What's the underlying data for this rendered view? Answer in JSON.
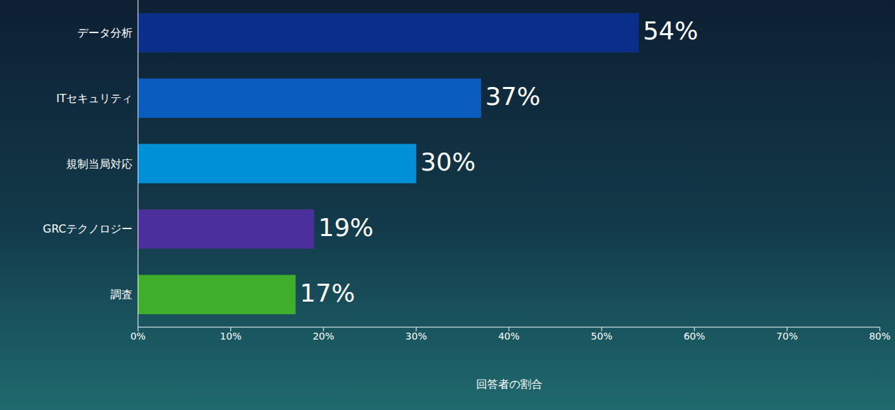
{
  "chart_data": {
    "type": "bar",
    "orientation": "horizontal",
    "categories": [
      "データ分析",
      "ITセキュリティ",
      "規制当局対応",
      "GRCテクノロジー",
      "調査"
    ],
    "values": [
      54,
      37,
      30,
      19,
      17
    ],
    "value_labels": [
      "54%",
      "37%",
      "30%",
      "19%",
      "17%"
    ],
    "colors": [
      "#0a2f8a",
      "#0a5cbf",
      "#0090d8",
      "#4b2f9a",
      "#3fae2a"
    ],
    "x_label": "回答者の割合",
    "xlim": [
      0,
      80
    ],
    "xticks": [
      {
        "value": 0,
        "label": "0%"
      },
      {
        "value": 10,
        "label": "10%"
      },
      {
        "value": 20,
        "label": "20%"
      },
      {
        "value": 30,
        "label": "30%"
      },
      {
        "value": 40,
        "label": "40%"
      },
      {
        "value": 50,
        "label": "50%"
      },
      {
        "value": 60,
        "label": "60%"
      },
      {
        "value": 70,
        "label": "70%"
      },
      {
        "value": 80,
        "label": "80%"
      }
    ],
    "grid": false,
    "data_labels": true
  }
}
